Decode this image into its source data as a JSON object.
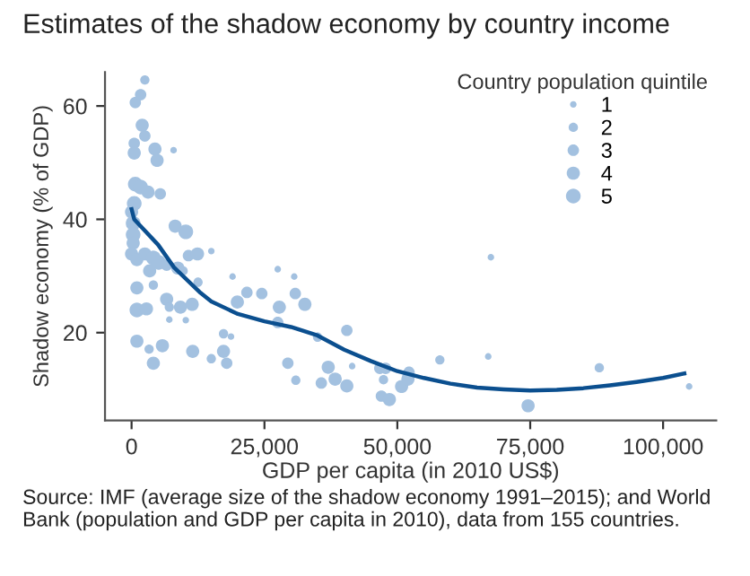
{
  "chart_data": {
    "type": "bubble",
    "title": "Estimates of the shadow economy by country income",
    "xlabel": "GDP per capita (in 2010 US$)",
    "ylabel": "Shadow economy (% of GDP)",
    "legend_title": "Country population quintile",
    "annotations": [
      "Source: IMF (average size of the shadow economy 1991–2015); and World Bank (population and GDP per capita in 2010), data from 155 countries."
    ],
    "xlim": [
      -5000,
      110000
    ],
    "ylim": [
      4.5,
      66
    ],
    "xticks": [
      {
        "value": 0,
        "label": "0"
      },
      {
        "value": 25000,
        "label": "25,000"
      },
      {
        "value": 50000,
        "label": "50,000"
      },
      {
        "value": 75000,
        "label": "75,000"
      },
      {
        "value": 100000,
        "label": "100,000"
      }
    ],
    "yticks": [
      20,
      40,
      60
    ],
    "grid": false,
    "size_legend": [
      1,
      2,
      3,
      4,
      5
    ],
    "series": [
      {
        "color": "#a3c1e0",
        "x": [
          2500,
          700,
          1700,
          2000,
          2500,
          500,
          500,
          4400,
          4800,
          7900,
          700,
          1700,
          3100,
          5400,
          500,
          0,
          300,
          300,
          300,
          8200,
          10200,
          0,
          1000,
          2500,
          4100,
          5100,
          3400,
          6600,
          8700,
          10700,
          12400,
          15000,
          1000,
          4100,
          6600,
          9200,
          11400,
          7100,
          1000,
          2800,
          9700,
          12500,
          7100,
          10200,
          19000,
          19900,
          21700,
          24500,
          27500,
          27800,
          27500,
          30600,
          30800,
          32600,
          35000,
          1000,
          3300,
          5800,
          4100,
          11500,
          15000,
          17300,
          17900,
          17300,
          18700,
          29400,
          30900,
          35700,
          37000,
          38300,
          40500,
          40500,
          41500,
          46700,
          47800,
          47400,
          47000,
          48500,
          50800,
          52000,
          52200,
          58000,
          67100,
          67600,
          74600,
          88000,
          104900
        ],
        "values": [
          64.6,
          60.6,
          62,
          56.6,
          54.7,
          53.4,
          51.7,
          52.4,
          50.4,
          52.2,
          46.2,
          45.7,
          44.8,
          44.5,
          42.8,
          41.3,
          39.3,
          37.3,
          35.8,
          38.8,
          37.8,
          33.9,
          32.9,
          33.9,
          33.2,
          32.4,
          30.9,
          31.9,
          31.4,
          33.6,
          33.9,
          34.4,
          27.9,
          28.4,
          25.9,
          24.5,
          25,
          24.5,
          24,
          24.2,
          30.9,
          28.9,
          22.3,
          22.2,
          29.9,
          25.4,
          27.1,
          26.9,
          31.2,
          24.5,
          21.8,
          29.9,
          26.9,
          25,
          19.2,
          18.5,
          17.1,
          17.7,
          14.6,
          16.7,
          15.4,
          16.7,
          14.6,
          19.8,
          19.3,
          14.6,
          11.6,
          11.1,
          13.9,
          11.8,
          10.6,
          20.4,
          14.1,
          13.7,
          13.7,
          11.7,
          8.8,
          8.2,
          10.5,
          11.8,
          13,
          15.2,
          15.8,
          33.3,
          7.1,
          13.8,
          10.5
        ],
        "sizes": [
          2,
          3,
          3,
          4,
          3,
          3,
          4,
          4,
          4,
          1,
          5,
          5,
          4,
          3,
          5,
          4,
          5,
          5,
          4,
          4,
          5,
          4,
          4,
          4,
          5,
          5,
          4,
          3,
          4,
          3,
          4,
          1,
          4,
          2,
          4,
          4,
          4,
          2,
          5,
          4,
          2,
          2,
          1,
          1,
          1,
          4,
          3,
          3,
          1,
          4,
          3,
          1,
          3,
          4,
          2,
          4,
          2,
          4,
          4,
          4,
          2,
          4,
          3,
          2,
          1,
          3,
          2,
          3,
          4,
          4,
          4,
          3,
          1,
          3,
          3,
          2,
          3,
          4,
          4,
          4,
          3,
          2,
          1,
          1,
          4,
          2,
          1
        ]
      },
      {
        "type": "line",
        "color": "#0b4f8f",
        "x": [
          0,
          500,
          5000,
          8000,
          13000,
          15000,
          20000,
          25000,
          30000,
          35000,
          40000,
          45000,
          50000,
          55000,
          60000,
          65000,
          70000,
          75000,
          80000,
          85000,
          90000,
          95000,
          100000,
          104000
        ],
        "values": [
          41.8,
          40,
          35.5,
          31.5,
          27,
          25.5,
          23.3,
          22,
          21,
          19.5,
          17,
          15,
          13.2,
          12,
          11,
          10.3,
          10,
          9.8,
          9.9,
          10.2,
          10.7,
          11.3,
          12,
          12.8
        ]
      }
    ]
  }
}
